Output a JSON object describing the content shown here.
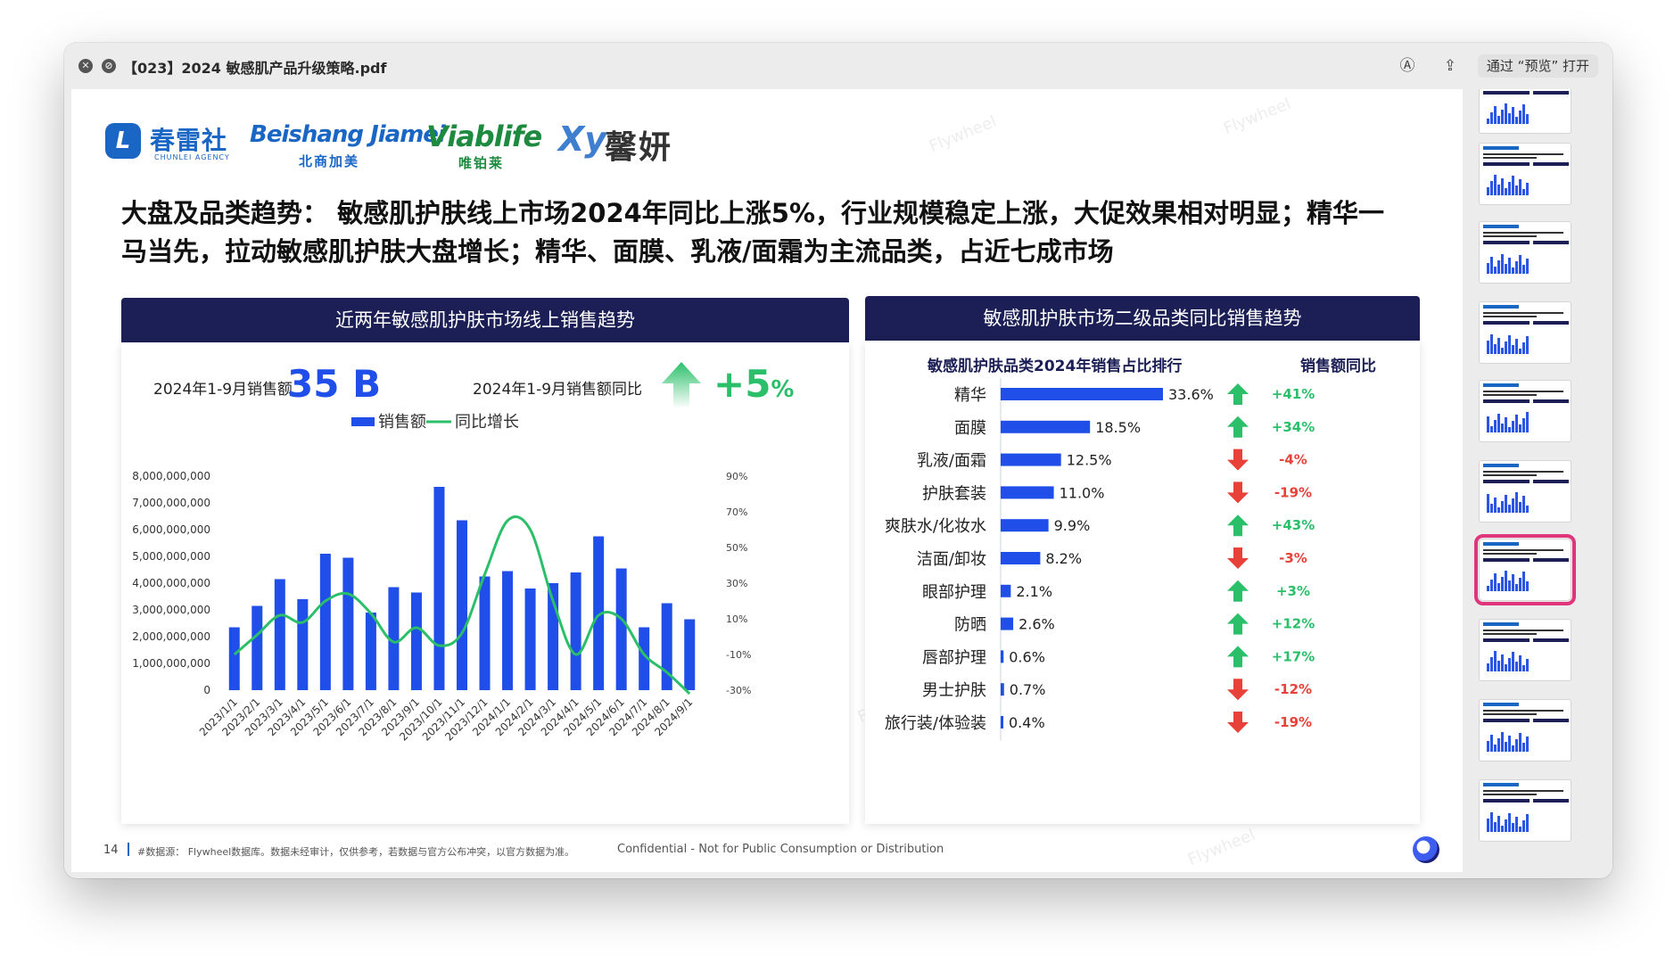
{
  "window": {
    "title": "【023】2024 敏感肌产品升级策略.pdf",
    "open_with": "通过 “预览” 打开",
    "icons": [
      "close-icon",
      "block-icon",
      "markup-icon",
      "share-icon"
    ]
  },
  "slide": {
    "logos": {
      "chunlei_cn": "春雷社",
      "chunlei_en": "CHUNLEI AGENCY",
      "beishang_en": "Beishang Jiamei",
      "beishang_cn": "北商加美",
      "viablife_en": "Viablife",
      "viablife_cn": "唯铂莱",
      "xinyan_mark": "Xy",
      "xinyan_cn": "馨妍"
    },
    "headline": "大盘及品类趋势：  敏感肌护肤线上市场2024年同比上涨5%，行业规模稳定上涨，大促效果相对明显；精华一马当先，拉动敏感肌护肤大盘增长；精华、面膜、乳液/面霜为主流品类，占近七成市场",
    "left_panel": {
      "title": "近两年敏感肌护肤市场线上销售趋势",
      "kpi1_label": "2024年1-9月销售额",
      "kpi1_value": "35 B",
      "kpi2_label": "2024年1-9月销售额同比",
      "kpi2_value": "+5",
      "kpi2_unit": "%"
    },
    "right_panel": {
      "title": "敏感肌护肤市场二级品类同比销售趋势",
      "subtitle": "敏感肌护肤品类2024年销售占比排行",
      "yoy_header": "销售额同比"
    },
    "footer": {
      "page": "14",
      "source": "#数据源：  Flywheel数据库。数据未经审计，仅供参考，若数据与官方公布冲突，以官方数据为准。",
      "confidential": "Confidential - Not for Public Consumption or Distribution"
    },
    "watermark_text": "Flywheel"
  },
  "chart_data": [
    {
      "type": "bar",
      "legend": [
        "销售额",
        "同比增长"
      ],
      "categories": [
        "2023/1/1",
        "2023/2/1",
        "2023/3/1",
        "2023/4/1",
        "2023/5/1",
        "2023/6/1",
        "2023/7/1",
        "2023/8/1",
        "2023/9/1",
        "2023/10/1",
        "2023/11/1",
        "2023/12/1",
        "2024/1/1",
        "2024/2/1",
        "2024/3/1",
        "2024/4/1",
        "2024/5/1",
        "2024/6/1",
        "2024/7/1",
        "2024/8/1",
        "2024/9/1"
      ],
      "series": [
        {
          "name": "销售额",
          "type": "bar",
          "axis": "left",
          "values": [
            2350000000,
            3150000000,
            4150000000,
            3400000000,
            5100000000,
            4950000000,
            2900000000,
            3850000000,
            3650000000,
            7600000000,
            6350000000,
            4250000000,
            4450000000,
            3800000000,
            4000000000,
            4400000000,
            5750000000,
            4550000000,
            2350000000,
            3250000000,
            2650000000
          ]
        },
        {
          "name": "同比增长",
          "type": "line",
          "axis": "right",
          "values": [
            -10,
            1,
            12,
            8,
            20,
            24,
            13,
            -3,
            5,
            -5,
            2,
            35,
            65,
            60,
            20,
            -10,
            12,
            10,
            -10,
            -20,
            -32
          ]
        }
      ],
      "ylim_left": [
        0,
        8000000000
      ],
      "yticks_left": [
        "0",
        "1,000,000,000",
        "2,000,000,000",
        "3,000,000,000",
        "4,000,000,000",
        "5,000,000,000",
        "6,000,000,000",
        "7,000,000,000",
        "8,000,000,000"
      ],
      "ylim_right": [
        -30,
        90
      ],
      "yticks_right": [
        "-30%",
        "-10%",
        "10%",
        "30%",
        "50%",
        "70%",
        "90%"
      ],
      "colors": {
        "bar": "#1f4ee8",
        "line": "#2bbf6a"
      }
    },
    {
      "type": "bar",
      "orientation": "horizontal",
      "categories": [
        "精华",
        "面膜",
        "乳液/面霜",
        "护肤套装",
        "爽肤水/化妆水",
        "洁面/卸妆",
        "眼部护理",
        "防晒",
        "唇部护理",
        "男士护肤",
        "旅行装/体验装"
      ],
      "values": [
        33.6,
        18.5,
        12.5,
        11.0,
        9.9,
        8.2,
        2.1,
        2.6,
        0.6,
        0.7,
        0.4
      ],
      "value_labels": [
        "33.6%",
        "18.5%",
        "12.5%",
        "11.0%",
        "9.9%",
        "8.2%",
        "2.1%",
        "2.6%",
        "0.6%",
        "0.7%",
        "0.4%"
      ],
      "yoy": [
        "+41%",
        "+34%",
        "-4%",
        "-19%",
        "+43%",
        "-3%",
        "+3%",
        "+12%",
        "+17%",
        "-12%",
        "-19%"
      ],
      "yoy_direction": [
        "up",
        "up",
        "down",
        "down",
        "up",
        "down",
        "up",
        "up",
        "up",
        "down",
        "down"
      ],
      "colors": {
        "bar": "#1f4ee8",
        "up": "#2bbf6a",
        "down": "#e8413a"
      }
    }
  ]
}
